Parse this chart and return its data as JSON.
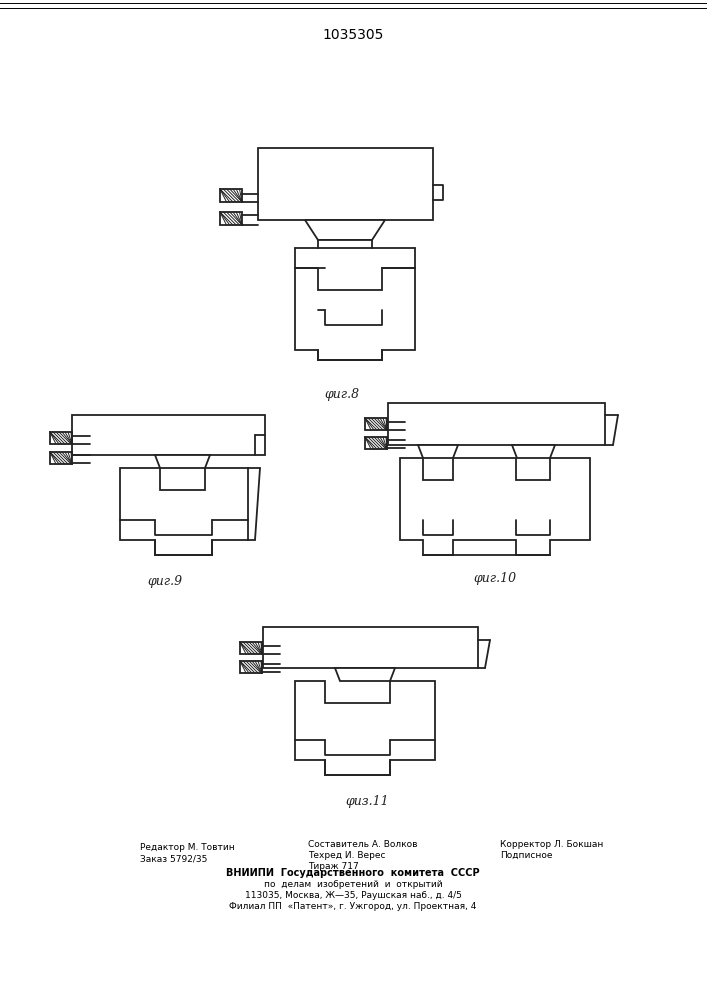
{
  "title": "1035305",
  "fig8_caption": "φиг.8",
  "fig9_caption": "φиг.9",
  "fig10_caption": "φиг.10",
  "fig11_caption": "φиз.11",
  "bg_color": "#ffffff",
  "line_color": "#222222",
  "lw": 1.3,
  "hatch_lw": 0.7
}
